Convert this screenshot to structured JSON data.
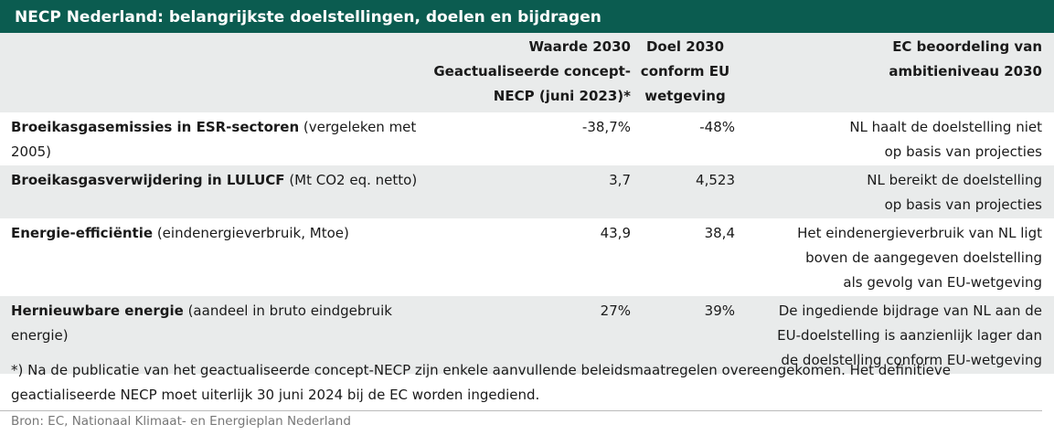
{
  "title": "NECP Nederland: belangrijkste doelstellingen, doelen en bijdragen",
  "table": {
    "header": [
      [
        "Waarde 2030",
        "Geactualiseerde concept-",
        "NECP (juni 2023)*"
      ],
      [
        "Doel 2030",
        "conform EU",
        "wetgeving"
      ],
      [
        "EC beoordeling van",
        "ambitieniveau 2030"
      ]
    ],
    "rows": [
      {
        "label": "Broeikasgasemissies in ESR-sectoren",
        "note": "(vergeleken met 2005)",
        "waarde": "-38,7%",
        "doel": "-48%",
        "beoordeling": [
          "NL haalt de doelstelling niet",
          "op basis van projecties"
        ]
      },
      {
        "label": "Broeikasgasverwijdering in LULUCF",
        "note": "(Mt CO2 eq. netto)",
        "waarde": "3,7",
        "doel": "4,523",
        "beoordeling": [
          "NL bereikt de doelstelling",
          "op basis van projecties"
        ]
      },
      {
        "label": "Energie-efficiëntie",
        "note": "(eindenergieverbruik, Mtoe)",
        "waarde": "43,9",
        "doel": "38,4",
        "beoordeling": [
          "Het eindenergieverbruik van NL ligt",
          "boven de aangegeven doelstelling",
          "als gevolg van EU-wetgeving"
        ]
      },
      {
        "label": "Hernieuwbare energie",
        "note": "(aandeel in bruto eindgebruik energie)",
        "waarde": "27%",
        "doel": "39%",
        "beoordeling": [
          "De ingediende bijdrage van NL aan de",
          "EU-doelstelling is aanzienlijk lager dan",
          "de doelstelling conform EU-wetgeving"
        ]
      }
    ]
  },
  "footnote": "*) Na de publicatie van het geactualiseerde concept-NECP zijn enkele aanvullende beleidsmaatregelen overeengekomen. Het definitieve geactialiseerde NECP moet uiterlijk 30 juni 2024 bij de EC worden ingediend.",
  "source": "Bron: EC, Nationaal Klimaat- en Energieplan Nederland"
}
